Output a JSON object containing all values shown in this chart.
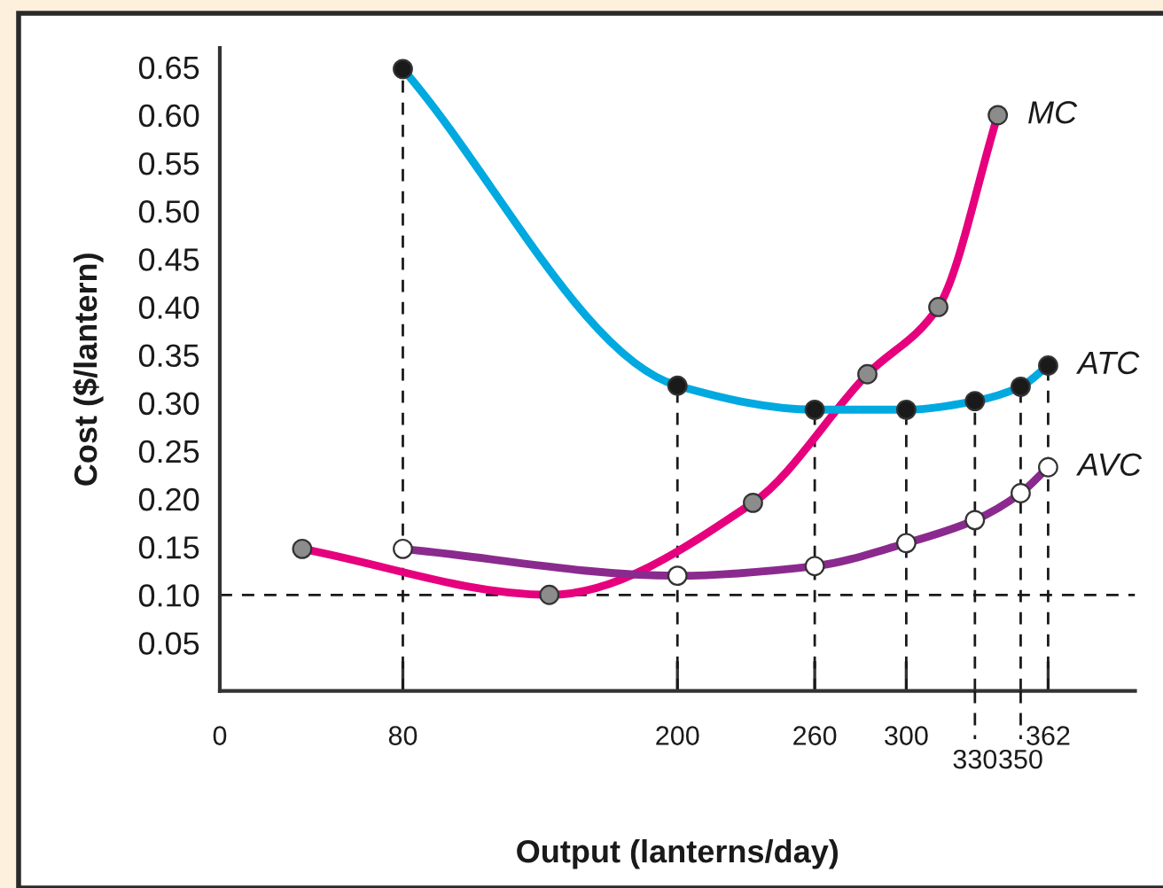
{
  "chart_data": {
    "type": "line",
    "xlabel": "Output (lanterns/day)",
    "ylabel": "Cost ($/lantern)",
    "xlim": [
      0,
      400
    ],
    "ylim": [
      0,
      0.67
    ],
    "xticks": [
      0,
      80,
      200,
      260,
      300,
      362
    ],
    "x2lim": [
      0,
      400
    ],
    "x2ticks": [
      330,
      350
    ],
    "yticks": [
      0.05,
      {
        "value": 0.1,
        "label": "0.10"
      },
      0.15,
      {
        "value": 0.2,
        "label": "0.20"
      },
      0.25,
      {
        "value": 0.3,
        "label": "0.30"
      },
      0.35,
      {
        "value": 0.4,
        "label": "0.40"
      },
      0.45,
      {
        "value": 0.5,
        "label": "0.50"
      },
      0.55,
      {
        "value": 0.6,
        "label": "0.60"
      },
      0.65
    ],
    "marker": "circle",
    "legend": false,
    "grid": false,
    "series": [
      {
        "name": "MC",
        "color": "#e6007e",
        "x": [
          36,
          144,
          233,
          283,
          314,
          340
        ],
        "values": [
          0.148,
          0.1,
          0.196,
          0.33,
          0.4,
          0.6
        ],
        "colors": [
          "#8c8c8c",
          "#8c8c8c",
          "#8c8c8c",
          "#8c8c8c",
          "#8c8c8c",
          "#8c8c8c"
        ]
      },
      {
        "name": "ATC",
        "color": "#00a9e0",
        "x": [
          80,
          200,
          260,
          300,
          330,
          350,
          362
        ],
        "values": [
          0.648,
          0.318,
          0.293,
          0.293,
          0.302,
          0.317,
          0.339
        ],
        "colors": [
          "#1a1a1a",
          "#1a1a1a",
          "#1a1a1a",
          "#1a1a1a",
          "#1a1a1a",
          "#1a1a1a",
          "#1a1a1a"
        ]
      },
      {
        "name": "AVC",
        "color": "#8b2a8e",
        "x": [
          80,
          200,
          260,
          300,
          330,
          350,
          362
        ],
        "values": [
          0.148,
          0.12,
          0.13,
          0.154,
          0.178,
          0.206,
          0.233
        ],
        "colors": [
          "#ffffff",
          "#ffffff",
          "#ffffff",
          "#ffffff",
          "#ffffff",
          "#ffffff",
          "#ffffff"
        ]
      }
    ],
    "ref_lines": [
      {
        "axis": "y",
        "value": 0.1,
        "line_style": "dashed",
        "color": "#1a1a1a"
      },
      {
        "axis": "x",
        "value": 80,
        "line_style": "dashed",
        "color": "#1a1a1a"
      },
      {
        "axis": "x",
        "value": 200,
        "line_style": "dashed",
        "color": "#1a1a1a"
      },
      {
        "axis": "x",
        "value": 260,
        "line_style": "dashed",
        "color": "#1a1a1a"
      },
      {
        "axis": "x",
        "value": 300,
        "line_style": "dashed",
        "color": "#1a1a1a"
      },
      {
        "axis": "x",
        "value": 330,
        "line_style": "dashed",
        "color": "#1a1a1a"
      },
      {
        "axis": "x",
        "value": 350,
        "line_style": "dashed",
        "color": "#1a1a1a"
      },
      {
        "axis": "x",
        "value": 362,
        "line_style": "dashed",
        "color": "#1a1a1a"
      }
    ]
  }
}
